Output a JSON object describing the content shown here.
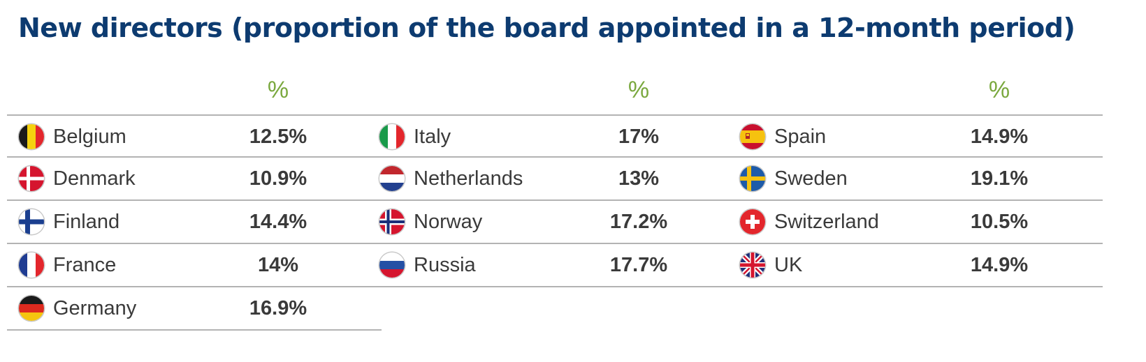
{
  "chart_data": {
    "type": "table",
    "title": "New directors (proportion of the board appointed in a 12-month period)",
    "column_header": "%",
    "columns": [
      [
        {
          "country": "Belgium",
          "value": 12.5,
          "label": "12.5%",
          "flag": "belgium-flag-icon"
        },
        {
          "country": "Denmark",
          "value": 10.9,
          "label": "10.9%",
          "flag": "denmark-flag-icon"
        },
        {
          "country": "Finland",
          "value": 14.4,
          "label": "14.4%",
          "flag": "finland-flag-icon"
        },
        {
          "country": "France",
          "value": 14,
          "label": "14%",
          "flag": "france-flag-icon"
        },
        {
          "country": "Germany",
          "value": 16.9,
          "label": "16.9%",
          "flag": "germany-flag-icon"
        }
      ],
      [
        {
          "country": "Italy",
          "value": 17,
          "label": "17%",
          "flag": "italy-flag-icon"
        },
        {
          "country": "Netherlands",
          "value": 13,
          "label": "13%",
          "flag": "netherlands-flag-icon"
        },
        {
          "country": "Norway",
          "value": 17.2,
          "label": "17.2%",
          "flag": "norway-flag-icon"
        },
        {
          "country": "Russia",
          "value": 17.7,
          "label": "17.7%",
          "flag": "russia-flag-icon"
        }
      ],
      [
        {
          "country": "Spain",
          "value": 14.9,
          "label": "14.9%",
          "flag": "spain-flag-icon"
        },
        {
          "country": "Sweden",
          "value": 19.1,
          "label": "19.1%",
          "flag": "sweden-flag-icon"
        },
        {
          "country": "Switzerland",
          "value": 10.5,
          "label": "10.5%",
          "flag": "switzerland-flag-icon"
        },
        {
          "country": "UK",
          "value": 14.9,
          "label": "14.9%",
          "flag": "uk-flag-icon"
        }
      ]
    ]
  },
  "colors": {
    "title": "#0d3b70",
    "header": "#7aa83e",
    "text": "#3a3a3a",
    "rule": "#b3b3b3"
  }
}
